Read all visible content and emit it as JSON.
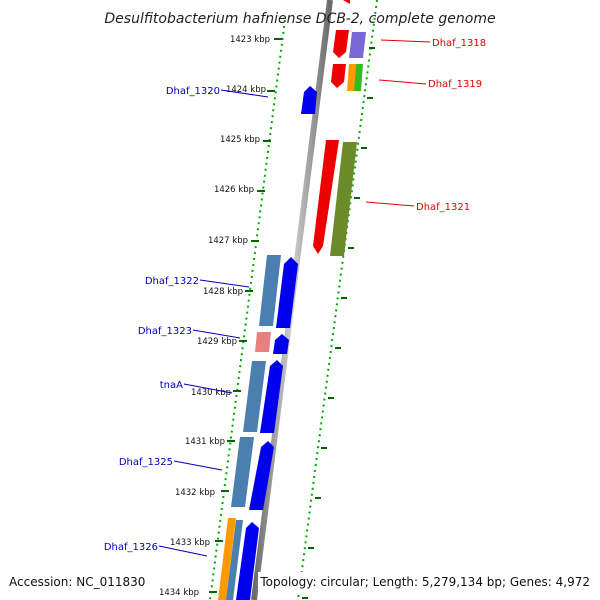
{
  "title": "Desulfitobacterium hafniense DCB-2, complete genome",
  "footer": {
    "accession": "Accession: NC_011830",
    "summary": "Topology: circular; Length: 5,279,134 bp; Genes: 4,972"
  },
  "ticks": [
    "1423 kbp",
    "1424 kbp",
    "1425 kbp",
    "1426 kbp",
    "1427 kbp",
    "1428 kbp",
    "1429 kbp",
    "1430 kbp",
    "1431 kbp",
    "1432 kbp",
    "1433 kbp",
    "1434 kbp"
  ],
  "gene_labels": [
    {
      "text": "Dhaf_1318",
      "color": "#dd0000"
    },
    {
      "text": "Dhaf_1319",
      "color": "#dd0000"
    },
    {
      "text": "Dhaf_1320",
      "color": "#0000bb"
    },
    {
      "text": "Dhaf_1321",
      "color": "#dd0000"
    },
    {
      "text": "Dhaf_1322",
      "color": "#0000bb"
    },
    {
      "text": "Dhaf_1323",
      "color": "#0000bb"
    },
    {
      "text": "tnaA",
      "color": "#0000bb"
    },
    {
      "text": "Dhaf_1325",
      "color": "#0000bb"
    },
    {
      "text": "Dhaf_1326",
      "color": "#0000bb"
    }
  ],
  "colors": {
    "forward_strand": "#0000ee",
    "reverse_strand": "#ee0000",
    "cog_steelblue": "#4a7fb0",
    "cog_olive": "#6b8a2a",
    "cog_lavender": "#7b68d8",
    "cog_orange": "#ff9900",
    "cog_green": "#33bb22",
    "cog_pink": "#e88080",
    "backbone": "#8a8a8a",
    "ruler_dots": "#00aa00"
  }
}
